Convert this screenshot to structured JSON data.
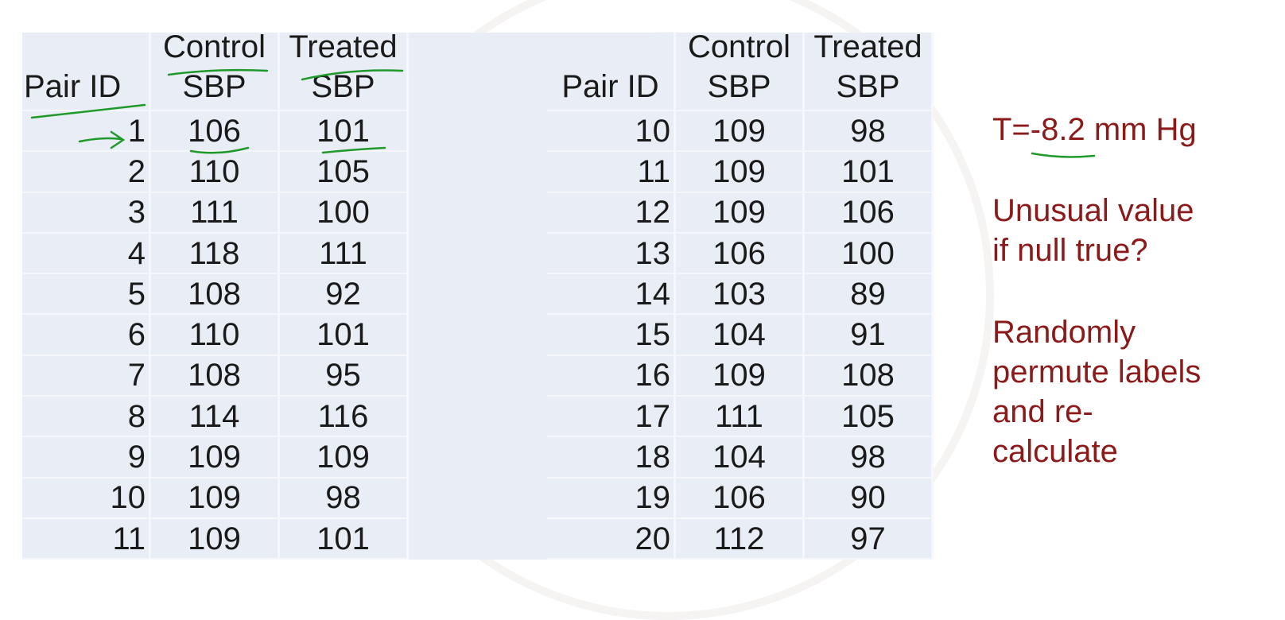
{
  "headers": {
    "pair_id": "Pair ID",
    "control": [
      "Control",
      "SBP"
    ],
    "treated": [
      "Treated",
      "SBP"
    ]
  },
  "left_rows": [
    [
      "1",
      "106",
      "101"
    ],
    [
      "2",
      "110",
      "105"
    ],
    [
      "3",
      "111",
      "100"
    ],
    [
      "4",
      "118",
      "111"
    ],
    [
      "5",
      "108",
      "92"
    ],
    [
      "6",
      "110",
      "101"
    ],
    [
      "7",
      "108",
      "95"
    ],
    [
      "8",
      "114",
      "116"
    ],
    [
      "9",
      "109",
      "109"
    ],
    [
      "10",
      "109",
      "98"
    ],
    [
      "11",
      "109",
      "101"
    ]
  ],
  "right_rows": [
    [
      "10",
      "109",
      "98"
    ],
    [
      "11",
      "109",
      "101"
    ],
    [
      "12",
      "109",
      "106"
    ],
    [
      "13",
      "106",
      "100"
    ],
    [
      "14",
      "103",
      "89"
    ],
    [
      "15",
      "104",
      "91"
    ],
    [
      "16",
      "109",
      "108"
    ],
    [
      "17",
      "111",
      "105"
    ],
    [
      "18",
      "104",
      "98"
    ],
    [
      "19",
      "106",
      "90"
    ],
    [
      "20",
      "112",
      "97"
    ]
  ],
  "side_notes": {
    "t_stat": "T=-8.2 mm Hg",
    "question": [
      "Unusual value",
      "if null true?"
    ],
    "action": [
      "Randomly",
      "permute labels",
      "and re-",
      "calculate"
    ]
  },
  "colors": {
    "table_bg": "#e9edf6",
    "note_text": "#8b1a1a",
    "ink": "#1f9a2a"
  }
}
